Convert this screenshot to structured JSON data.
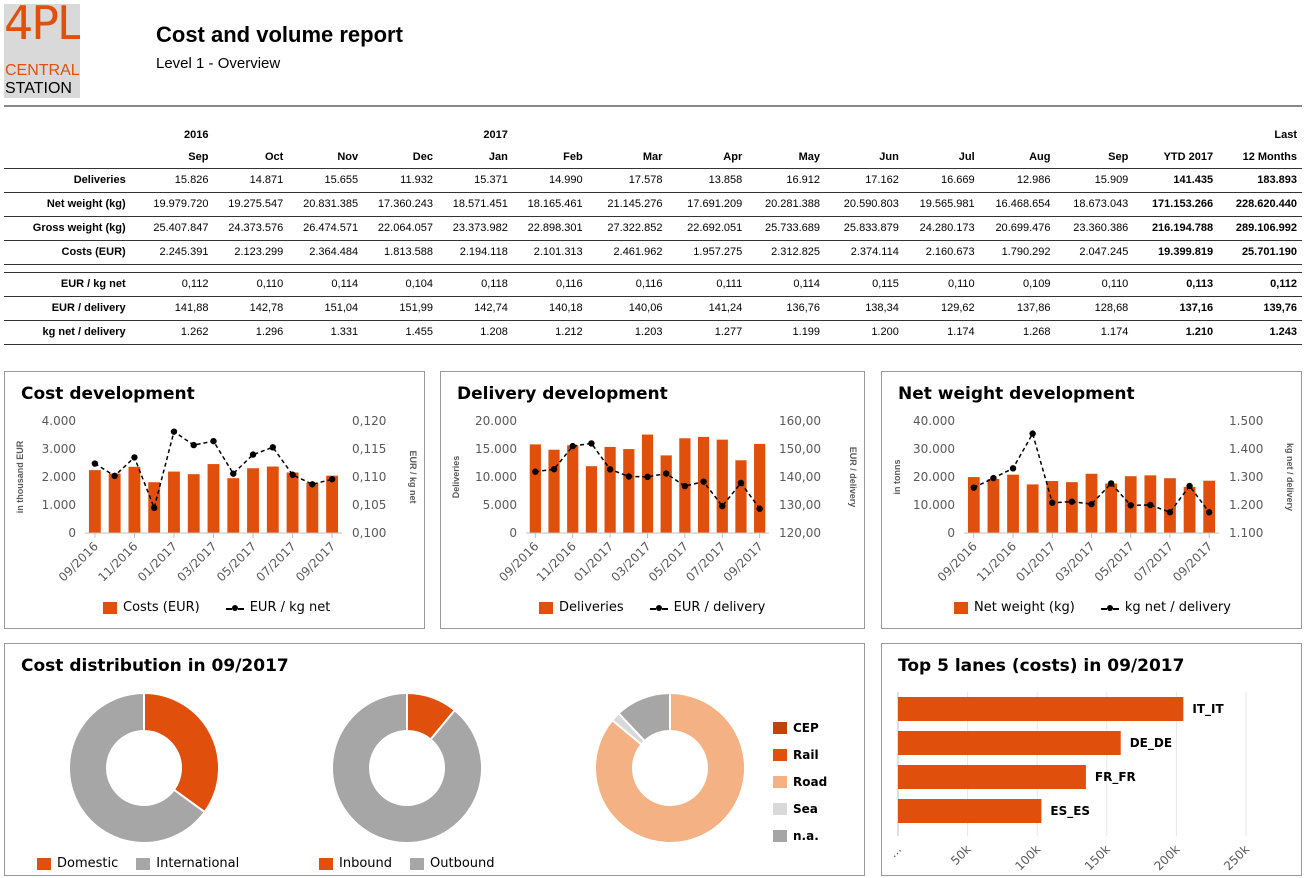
{
  "logo": {
    "big": "4PL",
    "mid": "CENTRAL",
    "low": "STATION"
  },
  "report": {
    "title": "Cost and volume report",
    "subtitle": "Level 1 - Overview"
  },
  "table": {
    "years": [
      "2016",
      "",
      "",
      "",
      "2017",
      "",
      "",
      "",
      "",
      "",
      "",
      "",
      "",
      "",
      "Last"
    ],
    "months": [
      "Sep",
      "Oct",
      "Nov",
      "Dec",
      "Jan",
      "Feb",
      "Mar",
      "Apr",
      "May",
      "Jun",
      "Jul",
      "Aug",
      "Sep",
      "YTD 2017",
      "12 Months"
    ],
    "rows1": [
      {
        "label": "Deliveries",
        "values": [
          "15.826",
          "14.871",
          "15.655",
          "11.932",
          "15.371",
          "14.990",
          "17.578",
          "13.858",
          "16.912",
          "17.162",
          "16.669",
          "12.986",
          "15.909",
          "141.435",
          "183.893"
        ]
      },
      {
        "label": "Net weight (kg)",
        "values": [
          "19.979.720",
          "19.275.547",
          "20.831.385",
          "17.360.243",
          "18.571.451",
          "18.165.461",
          "21.145.276",
          "17.691.209",
          "20.281.388",
          "20.590.803",
          "19.565.981",
          "16.468.654",
          "18.673.043",
          "171.153.266",
          "228.620.440"
        ]
      },
      {
        "label": "Gross weight (kg)",
        "values": [
          "25.407.847",
          "24.373.576",
          "26.474.571",
          "22.064.057",
          "23.373.982",
          "22.898.301",
          "27.322.852",
          "22.692.051",
          "25.733.689",
          "25.833.879",
          "24.280.173",
          "20.699.476",
          "23.360.386",
          "216.194.788",
          "289.106.992"
        ]
      },
      {
        "label": "Costs (EUR)",
        "values": [
          "2.245.391",
          "2.123.299",
          "2.364.484",
          "1.813.588",
          "2.194.118",
          "2.101.313",
          "2.461.962",
          "1.957.275",
          "2.312.825",
          "2.374.114",
          "2.160.673",
          "1.790.292",
          "2.047.245",
          "19.399.819",
          "25.701.190"
        ]
      }
    ],
    "rows2": [
      {
        "label": "EUR / kg net",
        "values": [
          "0,112",
          "0,110",
          "0,114",
          "0,104",
          "0,118",
          "0,116",
          "0,116",
          "0,111",
          "0,114",
          "0,115",
          "0,110",
          "0,109",
          "0,110",
          "0,113",
          "0,112"
        ]
      },
      {
        "label": "EUR / delivery",
        "values": [
          "141,88",
          "142,78",
          "151,04",
          "151,99",
          "142,74",
          "140,18",
          "140,06",
          "141,24",
          "136,76",
          "138,34",
          "129,62",
          "137,86",
          "128,68",
          "137,16",
          "139,76"
        ]
      },
      {
        "label": "kg net / delivery",
        "values": [
          "1.262",
          "1.296",
          "1.331",
          "1.455",
          "1.208",
          "1.212",
          "1.203",
          "1.277",
          "1.199",
          "1.200",
          "1.174",
          "1.268",
          "1.174",
          "1.210",
          "1.243"
        ]
      }
    ]
  },
  "colors": {
    "orange": "#e0500c",
    "grey": "#a6a6a6",
    "road": "#f4b183",
    "sea": "#d9d9d9",
    "cep": "#c0440a"
  },
  "chart_data": [
    {
      "type": "bar",
      "title": "Cost development",
      "categories": [
        "09/2016",
        "10/2016",
        "11/2016",
        "12/2016",
        "01/2017",
        "02/2017",
        "03/2017",
        "04/2017",
        "05/2017",
        "06/2017",
        "07/2017",
        "08/2017",
        "09/2017"
      ],
      "x_tick_labels": [
        "09/2016",
        "11/2016",
        "01/2017",
        "03/2017",
        "05/2017",
        "07/2017",
        "09/2017"
      ],
      "series": [
        {
          "name": "Costs (EUR)",
          "type": "bar",
          "axis": "left",
          "values": [
            2245,
            2123,
            2364,
            1814,
            2194,
            2101,
            2462,
            1957,
            2313,
            2374,
            2161,
            1790,
            2047
          ]
        },
        {
          "name": "EUR / kg net",
          "type": "line",
          "axis": "right",
          "values": [
            0.1124,
            0.1102,
            0.1135,
            0.1045,
            0.1181,
            0.1157,
            0.1164,
            0.1106,
            0.114,
            0.1153,
            0.1104,
            0.1087,
            0.1096
          ]
        }
      ],
      "ylabel": "in thousand EUR",
      "ylim": [
        0,
        4000
      ],
      "yticks": [
        "0",
        "1.000",
        "2.000",
        "3.000",
        "4.000"
      ],
      "y2label": "EUR / kg net",
      "y2lim": [
        0.1,
        0.12
      ],
      "y2ticks": [
        "0,100",
        "0,105",
        "0,110",
        "0,115",
        "0,120"
      ]
    },
    {
      "type": "bar",
      "title": "Delivery development",
      "categories": [
        "09/2016",
        "10/2016",
        "11/2016",
        "12/2016",
        "01/2017",
        "02/2017",
        "03/2017",
        "04/2017",
        "05/2017",
        "06/2017",
        "07/2017",
        "08/2017",
        "09/2017"
      ],
      "x_tick_labels": [
        "09/2016",
        "11/2016",
        "01/2017",
        "03/2017",
        "05/2017",
        "07/2017",
        "09/2017"
      ],
      "series": [
        {
          "name": "Deliveries",
          "type": "bar",
          "axis": "left",
          "values": [
            15826,
            14871,
            15655,
            11932,
            15371,
            14990,
            17578,
            13858,
            16912,
            17162,
            16669,
            12986,
            15909
          ]
        },
        {
          "name": "EUR / delivery",
          "type": "line",
          "axis": "right",
          "values": [
            141.88,
            142.78,
            151.04,
            151.99,
            142.74,
            140.18,
            140.06,
            141.24,
            136.76,
            138.34,
            129.62,
            137.86,
            128.68
          ]
        }
      ],
      "ylabel": "Deliveries",
      "ylim": [
        0,
        20000
      ],
      "yticks": [
        "0",
        "5.000",
        "10.000",
        "15.000",
        "20.000"
      ],
      "y2label": "EUR / delivery",
      "y2lim": [
        120,
        160
      ],
      "y2ticks": [
        "120,00",
        "130,00",
        "140,00",
        "150,00",
        "160,00"
      ]
    },
    {
      "type": "bar",
      "title": "Net weight development",
      "categories": [
        "09/2016",
        "10/2016",
        "11/2016",
        "12/2016",
        "01/2017",
        "02/2017",
        "03/2017",
        "04/2017",
        "05/2017",
        "06/2017",
        "07/2017",
        "08/2017",
        "09/2017"
      ],
      "x_tick_labels": [
        "09/2016",
        "11/2016",
        "01/2017",
        "03/2017",
        "05/2017",
        "07/2017",
        "09/2017"
      ],
      "series": [
        {
          "name": "Net weight (kg)",
          "type": "bar",
          "axis": "left",
          "values": [
            19980,
            19276,
            20831,
            17360,
            18571,
            18165,
            21145,
            17691,
            20281,
            20591,
            19566,
            16469,
            18673
          ]
        },
        {
          "name": "kg net / delivery",
          "type": "line",
          "axis": "right",
          "values": [
            1262,
            1296,
            1331,
            1455,
            1208,
            1212,
            1203,
            1277,
            1199,
            1200,
            1174,
            1268,
            1174
          ]
        }
      ],
      "ylabel": "in tonns",
      "ylim": [
        0,
        40000
      ],
      "yticks": [
        "0",
        "10.000",
        "20.000",
        "30.000",
        "40.000"
      ],
      "y2label": "kg net / delivery",
      "y2lim": [
        1100,
        1500
      ],
      "y2ticks": [
        "1.100",
        "1.200",
        "1.300",
        "1.400",
        "1.500"
      ]
    },
    {
      "type": "pie",
      "title": "Cost distribution in 09/2017",
      "donuts": [
        {
          "labels": [
            "Domestic",
            "International"
          ],
          "values": [
            35,
            65
          ],
          "colors": [
            "#e0500c",
            "#a6a6a6"
          ]
        },
        {
          "labels": [
            "Inbound",
            "Outbound"
          ],
          "values": [
            11,
            89
          ],
          "colors": [
            "#e0500c",
            "#a6a6a6"
          ]
        },
        {
          "labels": [
            "CEP",
            "Rail",
            "Road",
            "Sea",
            "n.a."
          ],
          "values": [
            0,
            0,
            86,
            2,
            12
          ],
          "colors": [
            "#c0440a",
            "#e0500c",
            "#f4b183",
            "#d9d9d9",
            "#a6a6a6"
          ]
        }
      ]
    },
    {
      "type": "bar",
      "orientation": "horizontal",
      "title": "Top 5 lanes (costs) in 09/2017",
      "categories": [
        "IT_IT",
        "DE_DE",
        "FR_FR",
        "ES_ES"
      ],
      "values": [
        205000,
        160000,
        135000,
        103000
      ],
      "xlim": [
        0,
        250000
      ],
      "xticks": [
        "...",
        "50k",
        "100k",
        "150k",
        "200k",
        "250k"
      ]
    }
  ]
}
